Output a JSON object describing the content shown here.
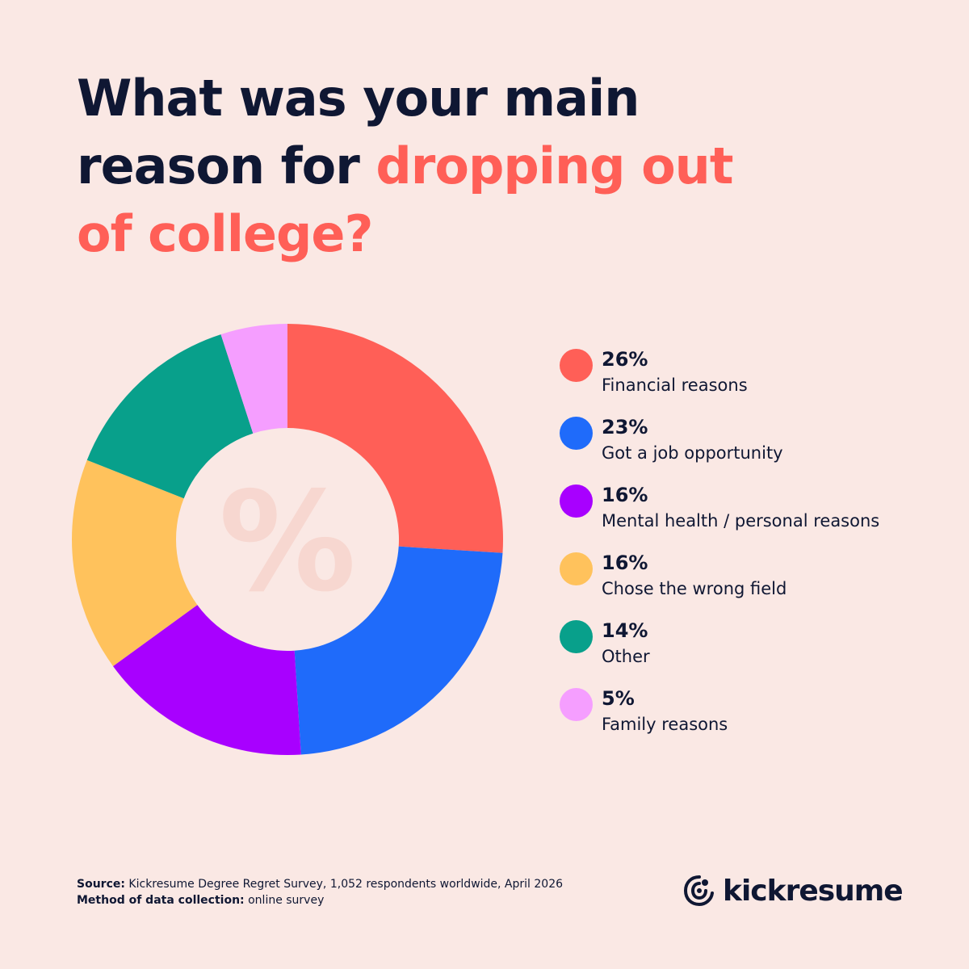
{
  "title": {
    "part1": "What was your main reason for ",
    "accent": "dropping out of college?"
  },
  "chart_data": {
    "type": "pie",
    "title": "What was your main reason for dropping out of college?",
    "center_symbol": "%",
    "slices": [
      {
        "label": "Financial reasons",
        "value": 26,
        "display": "26%",
        "color": "#FF5F57"
      },
      {
        "label": "Got a job opportunity",
        "value": 23,
        "display": "23%",
        "color": "#1F6BFA"
      },
      {
        "label": "Mental health / personal reasons",
        "value": 16,
        "display": "16%",
        "color": "#A800FF"
      },
      {
        "label": "Chose the wrong field",
        "value": 16,
        "display": "16%",
        "color": "#FFC25C"
      },
      {
        "label": "Other",
        "value": 14,
        "display": "14%",
        "color": "#08A08B"
      },
      {
        "label": "Family reasons",
        "value": 5,
        "display": "5%",
        "color": "#F59EFF"
      }
    ],
    "legend_position": "right"
  },
  "footer": {
    "source_label": "Source:",
    "source_text": "Kickresume Degree Regret Survey, 1,052 respondents worldwide, April 2026",
    "method_label": "Method of data collection:",
    "method_text": "online survey"
  },
  "brand": {
    "name": "kickresume",
    "logo_icon": "kickresume-logo-icon"
  },
  "colors": {
    "background": "#FAE8E4",
    "text": "#0F1733",
    "accent": "#FF5F57"
  }
}
